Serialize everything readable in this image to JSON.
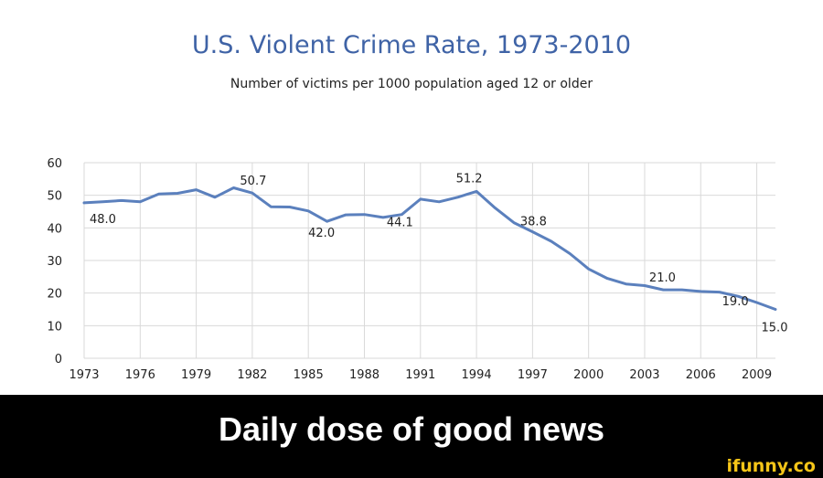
{
  "chart_data": {
    "type": "line",
    "title": "U.S. Violent Crime Rate, 1973-2010",
    "subtitle": "Number of victims per 1000 population aged 12 or older",
    "xlabel": "",
    "ylabel": "",
    "xlim": [
      1973,
      2010
    ],
    "ylim": [
      0,
      60
    ],
    "x_ticks": [
      "1973",
      "1976",
      "1979",
      "1982",
      "1985",
      "1988",
      "1991",
      "1994",
      "1997",
      "2000",
      "2003",
      "2006",
      "2009"
    ],
    "y_ticks": [
      "0",
      "10",
      "20",
      "30",
      "40",
      "50",
      "60"
    ],
    "grid": true,
    "legend": "none",
    "line_color": "#5b80bd",
    "series": [
      {
        "x": [
          1973,
          1974,
          1975,
          1976,
          1977,
          1978,
          1979,
          1980,
          1981,
          1982,
          1983,
          1984,
          1985,
          1986,
          1987,
          1988,
          1989,
          1990,
          1991,
          1992,
          1993,
          1994,
          1995,
          1996,
          1997,
          1998,
          1999,
          2000,
          2001,
          2002,
          2003,
          2004,
          2005,
          2006,
          2007,
          2008,
          2009,
          2010
        ],
        "y": [
          47.7,
          48.0,
          48.4,
          48.0,
          50.4,
          50.6,
          51.7,
          49.4,
          52.3,
          50.7,
          46.5,
          46.4,
          45.2,
          42.0,
          44.0,
          44.1,
          43.2,
          44.1,
          48.8,
          48.0,
          49.4,
          51.2,
          46.1,
          41.6,
          38.8,
          35.9,
          32.1,
          27.4,
          24.5,
          22.8,
          22.3,
          21.0,
          21.0,
          20.5,
          20.3,
          19.0,
          17.1,
          15.0
        ]
      }
    ],
    "data_labels": [
      {
        "x": 1974,
        "y": 48.0,
        "text": "48.0"
      },
      {
        "x": 1982,
        "y": 50.7,
        "text": "50.7"
      },
      {
        "x": 1986,
        "y": 42.0,
        "text": "42.0"
      },
      {
        "x": 1990,
        "y": 44.1,
        "text": "44.1"
      },
      {
        "x": 1994,
        "y": 51.2,
        "text": "51.2"
      },
      {
        "x": 1997,
        "y": 38.8,
        "text": "38.8"
      },
      {
        "x": 2004,
        "y": 21.0,
        "text": "21.0"
      },
      {
        "x": 2008,
        "y": 19.0,
        "text": "19.0"
      },
      {
        "x": 2010,
        "y": 15.0,
        "text": "15.0"
      }
    ]
  },
  "caption": "Daily dose of good news",
  "watermark": "ifunny.co",
  "colors": {
    "title": "#3f63a6",
    "line": "#5b80bd",
    "caption_bg": "#000000",
    "caption_text": "#ffffff",
    "watermark": "#f5c518"
  }
}
